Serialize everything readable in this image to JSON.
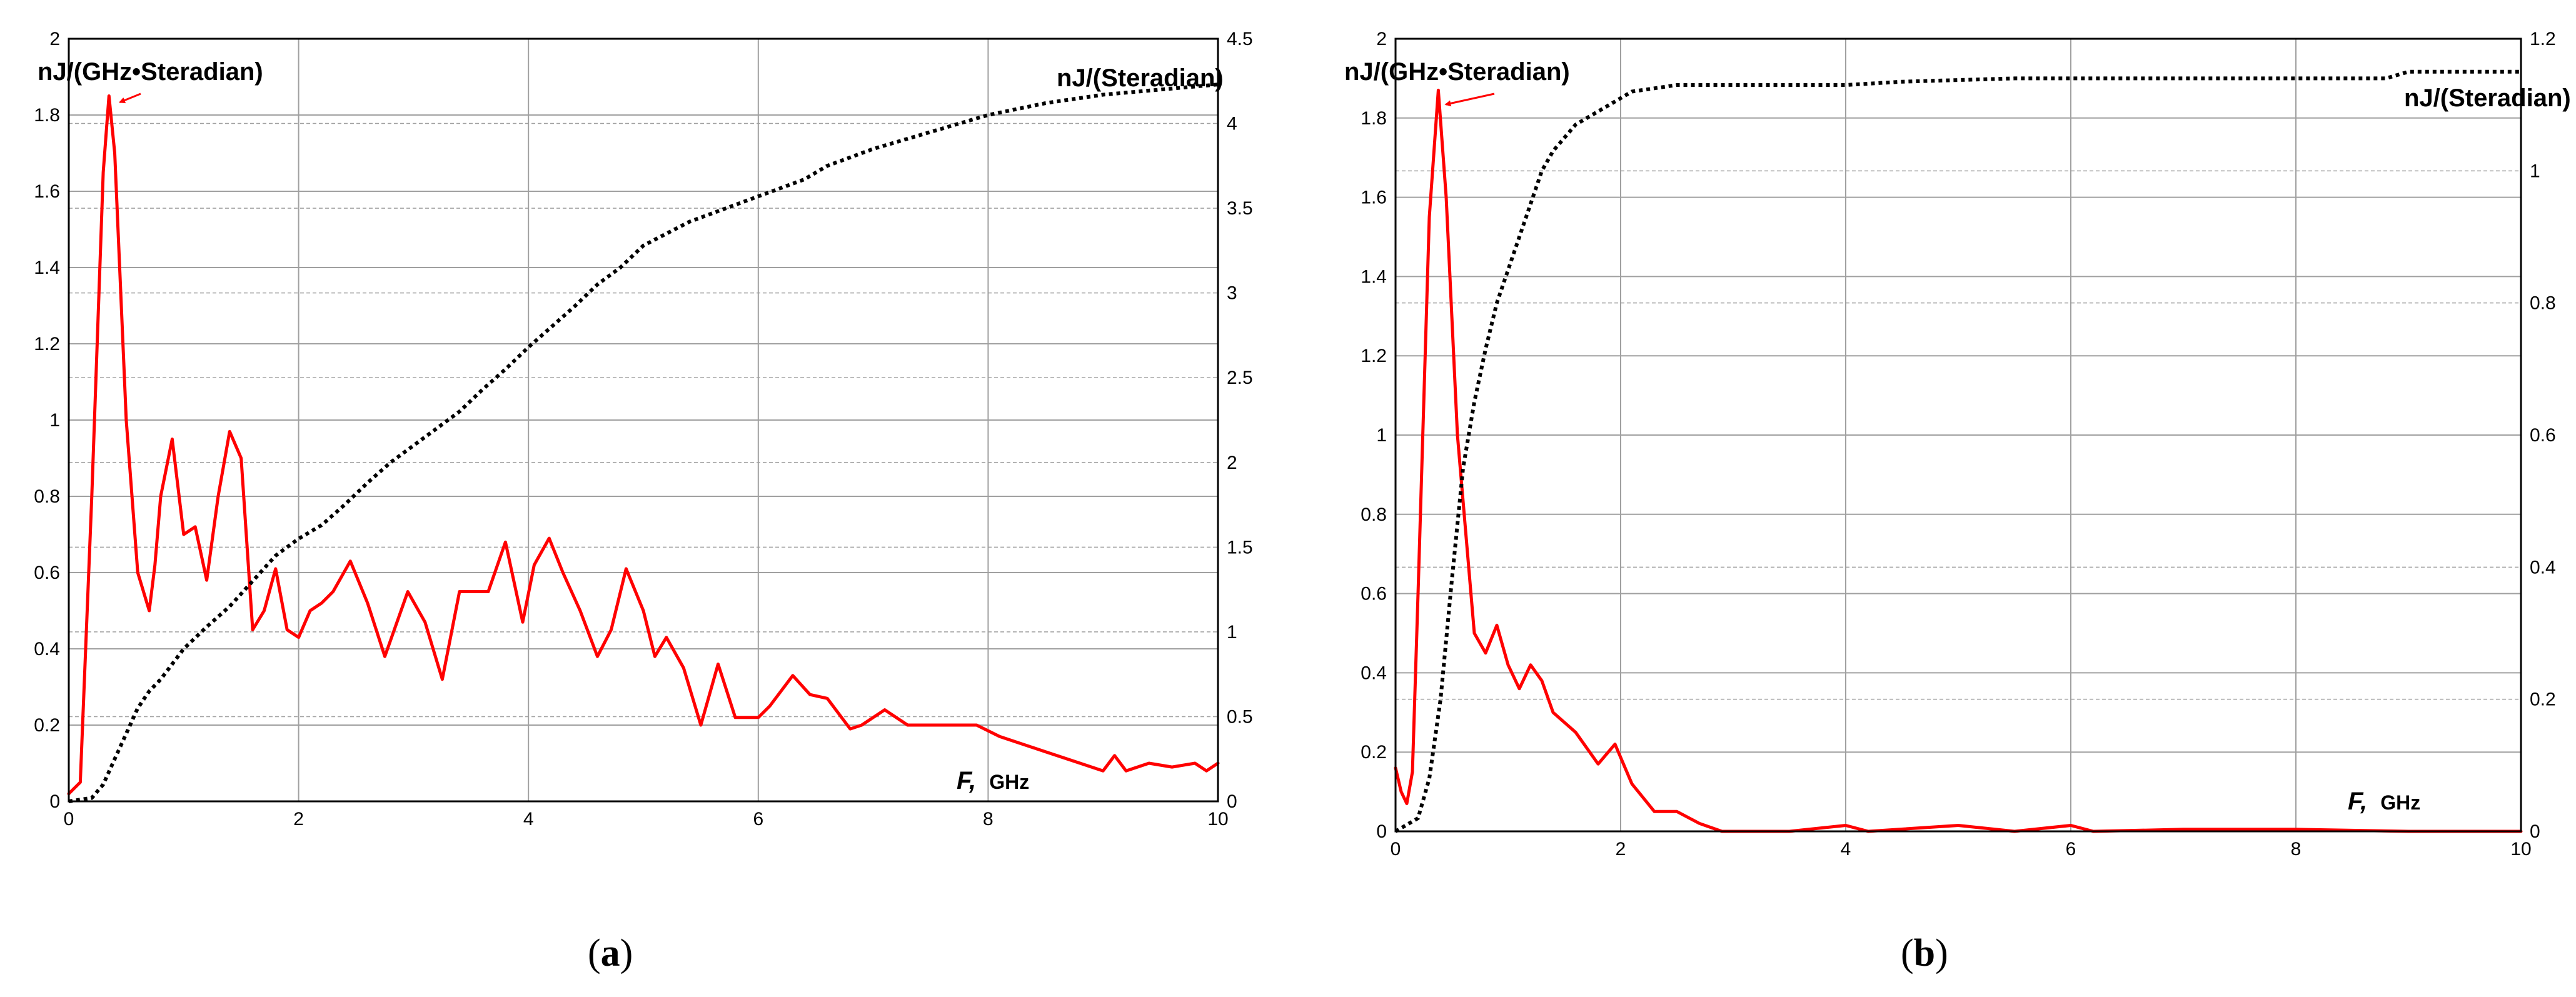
{
  "colors": {
    "spectral_density": "#ff0000",
    "cumulative": "#000000",
    "grid": "#a0a0a0",
    "frame": "#000000"
  },
  "chart_data": [
    {
      "panel": "(a)",
      "panel_letter": "a",
      "type": "line",
      "left_unit": "nJ/(GHz•Steradian)",
      "right_unit": "nJ/(Steradian)",
      "xlabel_var": "F,",
      "xlabel_unit": "GHz",
      "xlim": [
        0,
        10
      ],
      "ylim_left": [
        0,
        2
      ],
      "ylim_right": [
        0,
        4.5
      ],
      "x_ticks": [
        "0",
        "2",
        "4",
        "6",
        "8",
        "10"
      ],
      "y_left_ticks": [
        "0",
        "0.2",
        "0.4",
        "0.6",
        "0.8",
        "1",
        "1.2",
        "1.4",
        "1.6",
        "1.8",
        "2"
      ],
      "y_right_ticks": [
        "0",
        "0.5",
        "1",
        "1.5",
        "2",
        "2.5",
        "3",
        "3.5",
        "4",
        "4.5"
      ],
      "grid": true,
      "annotation": {
        "text": "nJ/(GHz•Steradian)",
        "arrow_to": [
          0.38,
          1.85
        ]
      },
      "series": [
        {
          "axis": "left",
          "style": "solid",
          "x": [
            0,
            0.1,
            0.2,
            0.3,
            0.35,
            0.4,
            0.5,
            0.6,
            0.7,
            0.75,
            0.8,
            0.9,
            1.0,
            1.1,
            1.2,
            1.3,
            1.4,
            1.5,
            1.6,
            1.7,
            1.8,
            1.9,
            2.0,
            2.1,
            2.2,
            2.3,
            2.45,
            2.6,
            2.75,
            2.95,
            3.1,
            3.25,
            3.4,
            3.55,
            3.65,
            3.8,
            3.95,
            4.05,
            4.18,
            4.3,
            4.45,
            4.6,
            4.72,
            4.85,
            5.0,
            5.1,
            5.2,
            5.35,
            5.5,
            5.65,
            5.8,
            5.9,
            6.0,
            6.1,
            6.3,
            6.45,
            6.6,
            6.8,
            6.9,
            7.1,
            7.3,
            7.6,
            7.9,
            8.1,
            8.5,
            8.8,
            9.0,
            9.1,
            9.2,
            9.4,
            9.6,
            9.8,
            9.9,
            10.0
          ],
          "y": [
            0.02,
            0.05,
            0.8,
            1.65,
            1.85,
            1.7,
            1.0,
            0.6,
            0.5,
            0.62,
            0.8,
            0.95,
            0.7,
            0.72,
            0.58,
            0.8,
            0.97,
            0.9,
            0.45,
            0.5,
            0.61,
            0.45,
            0.43,
            0.5,
            0.52,
            0.55,
            0.63,
            0.52,
            0.38,
            0.55,
            0.47,
            0.32,
            0.55,
            0.55,
            0.55,
            0.68,
            0.47,
            0.62,
            0.69,
            0.6,
            0.5,
            0.38,
            0.45,
            0.61,
            0.5,
            0.38,
            0.43,
            0.35,
            0.2,
            0.36,
            0.22,
            0.22,
            0.22,
            0.25,
            0.33,
            0.28,
            0.27,
            0.19,
            0.2,
            0.24,
            0.2,
            0.2,
            0.2,
            0.17,
            0.13,
            0.1,
            0.08,
            0.12,
            0.08,
            0.1,
            0.09,
            0.1,
            0.08,
            0.1
          ]
        },
        {
          "axis": "right",
          "style": "dotted",
          "x": [
            0,
            0.2,
            0.3,
            0.4,
            0.5,
            0.6,
            0.7,
            0.8,
            1.0,
            1.2,
            1.4,
            1.6,
            1.8,
            2.0,
            2.2,
            2.4,
            2.6,
            2.8,
            3.0,
            3.2,
            3.4,
            3.6,
            3.8,
            4.0,
            4.2,
            4.4,
            4.6,
            4.8,
            5.0,
            5.2,
            5.4,
            5.6,
            5.8,
            6.0,
            6.2,
            6.4,
            6.6,
            6.8,
            7.0,
            7.5,
            8.0,
            8.5,
            9.0,
            9.5,
            10.0
          ],
          "y": [
            0,
            0.02,
            0.1,
            0.25,
            0.4,
            0.55,
            0.65,
            0.72,
            0.9,
            1.03,
            1.15,
            1.3,
            1.45,
            1.55,
            1.63,
            1.75,
            1.88,
            2.0,
            2.1,
            2.2,
            2.3,
            2.43,
            2.55,
            2.68,
            2.8,
            2.92,
            3.05,
            3.15,
            3.28,
            3.35,
            3.42,
            3.47,
            3.52,
            3.57,
            3.62,
            3.67,
            3.75,
            3.8,
            3.85,
            3.95,
            4.05,
            4.12,
            4.17,
            4.2,
            4.23
          ]
        }
      ]
    },
    {
      "panel": "(b)",
      "panel_letter": "b",
      "type": "line",
      "left_unit": "nJ/(GHz•Steradian)",
      "right_unit": "nJ/(Steradian)",
      "xlabel_var": "F,",
      "xlabel_unit": "GHz",
      "xlim": [
        0,
        10
      ],
      "ylim_left": [
        0,
        2
      ],
      "ylim_right": [
        0,
        1.2
      ],
      "x_ticks": [
        "0",
        "2",
        "4",
        "6",
        "8",
        "10"
      ],
      "y_left_ticks": [
        "0",
        "0.2",
        "0.4",
        "0.6",
        "0.8",
        "1",
        "1.2",
        "1.4",
        "1.6",
        "1.8",
        "2"
      ],
      "y_right_ticks": [
        "0",
        "0.2",
        "0.4",
        "0.6",
        "0.8",
        "1",
        "1.2"
      ],
      "grid": true,
      "annotation": {
        "text": "nJ/(GHz•Steradian)",
        "arrow_to": [
          0.38,
          1.85
        ]
      },
      "series": [
        {
          "axis": "left",
          "style": "solid",
          "x": [
            0,
            0.05,
            0.1,
            0.15,
            0.2,
            0.3,
            0.38,
            0.45,
            0.55,
            0.7,
            0.8,
            0.9,
            1.0,
            1.1,
            1.2,
            1.3,
            1.4,
            1.6,
            1.8,
            1.95,
            2.1,
            2.3,
            2.5,
            2.7,
            2.9,
            3.5,
            4.0,
            4.2,
            5.0,
            5.5,
            6.0,
            6.2,
            7.0,
            8.0,
            9.0,
            10.0
          ],
          "y": [
            0.16,
            0.1,
            0.07,
            0.15,
            0.6,
            1.55,
            1.87,
            1.6,
            1.0,
            0.5,
            0.45,
            0.52,
            0.42,
            0.36,
            0.42,
            0.38,
            0.3,
            0.25,
            0.17,
            0.22,
            0.12,
            0.05,
            0.05,
            0.02,
            0.0,
            0.0,
            0.015,
            0.0,
            0.015,
            0.0,
            0.015,
            0.0,
            0.005,
            0.005,
            0.0,
            0.0
          ]
        },
        {
          "axis": "right",
          "style": "dotted",
          "x": [
            0,
            0.1,
            0.2,
            0.3,
            0.4,
            0.5,
            0.6,
            0.7,
            0.8,
            0.9,
            1.0,
            1.1,
            1.2,
            1.3,
            1.4,
            1.5,
            1.6,
            1.7,
            1.8,
            1.9,
            2.0,
            2.1,
            2.3,
            2.5,
            2.8,
            3.0,
            4.0,
            4.5,
            5.5,
            6.5,
            7.5,
            8.8,
            9.0,
            10.0
          ],
          "y": [
            0,
            0.01,
            0.02,
            0.08,
            0.2,
            0.38,
            0.55,
            0.65,
            0.73,
            0.8,
            0.85,
            0.9,
            0.95,
            1.0,
            1.03,
            1.05,
            1.07,
            1.08,
            1.09,
            1.1,
            1.11,
            1.12,
            1.125,
            1.13,
            1.13,
            1.13,
            1.13,
            1.135,
            1.14,
            1.14,
            1.14,
            1.14,
            1.15,
            1.15
          ]
        }
      ]
    }
  ]
}
